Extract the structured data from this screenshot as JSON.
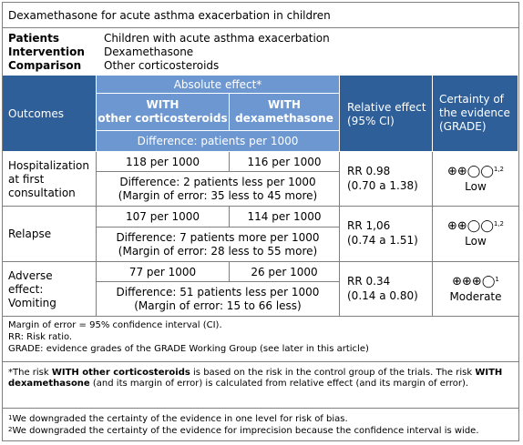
{
  "title": "Dexamethasone for acute asthma exacerbation in children",
  "pico": [
    {
      "label": "Patients",
      "value": "Children with acute asthma exacerbation"
    },
    {
      "label": "Intervention",
      "value": "Dexamethasone"
    },
    {
      "label": "Comparison",
      "value": "Other corticosteroids"
    }
  ],
  "header": {
    "outcomes": "Outcomes",
    "absolute": "Absolute effect*",
    "with_other_1": "WITH",
    "with_other_2": "other corticosteroids",
    "with_dexa_1": "WITH",
    "with_dexa_2": "dexamethasone",
    "difference": "Difference: patients per 1000",
    "relative_1": "Relative effect",
    "relative_2": "(95% CI)",
    "certainty_1": "Certainty of",
    "certainty_2": "the evidence",
    "certainty_3": "(GRADE)"
  },
  "rows": [
    {
      "outcome_lines": [
        "Hospitalization",
        "at first",
        "consultation"
      ],
      "other": "118 per 1000",
      "dexa": "116 per 1000",
      "diff_1": "Difference: 2 patients less per 1000",
      "diff_2": "(Margin of error: 35 less to 45 more)",
      "rr_1": "RR 0.98",
      "rr_2": "(0.70 a 1.38)",
      "grade_symbols": "⊕⊕◯◯",
      "grade_sup": "1,2",
      "grade_label": "Low"
    },
    {
      "outcome_lines": [
        "Relapse"
      ],
      "other": "107 per 1000",
      "dexa": "114 per 1000",
      "diff_1": "Difference: 7 patients more per 1000",
      "diff_2": "(Margin of error: 28 less to 55 more)",
      "rr_1": "RR 1,06",
      "rr_2": "(0.74 a 1.51)",
      "grade_symbols": "⊕⊕◯◯",
      "grade_sup": "1,2",
      "grade_label": "Low"
    },
    {
      "outcome_lines": [
        "Adverse",
        "effect:",
        "Vomiting"
      ],
      "other": "77 per 1000",
      "dexa": "26 per 1000",
      "diff_1": "Difference: 51 patients less per 1000",
      "diff_2": "(Margin of error: 15 to 66 less)",
      "rr_1": "RR 0.34",
      "rr_2": "(0.14 a 0.80)",
      "grade_symbols": "⊕⊕⊕◯",
      "grade_sup": "1",
      "grade_label": "Moderate"
    }
  ],
  "footnotes": {
    "line1": "Margin of error = 95% confidence interval (CI).",
    "line2": "RR: Risk ratio.",
    "line3": "GRADE: evidence grades of the GRADE Working Group (see later in this article)",
    "star_a": "*The risk ",
    "star_b": "WITH other corticosteroids",
    "star_c": " is based on the risk in the control group of the trials. The risk ",
    "star_d": "WITH dexamethasone",
    "star_e": " (and its margin of error) is calculated from relative effect (and its margin of error).",
    "n1_sup": "1",
    "n1": "We downgraded the certainty of the evidence in one level for risk of bias.",
    "n2_sup": "2",
    "n2": "We downgraded the certainty of the evidence for imprecision because the confidence interval is wide."
  }
}
